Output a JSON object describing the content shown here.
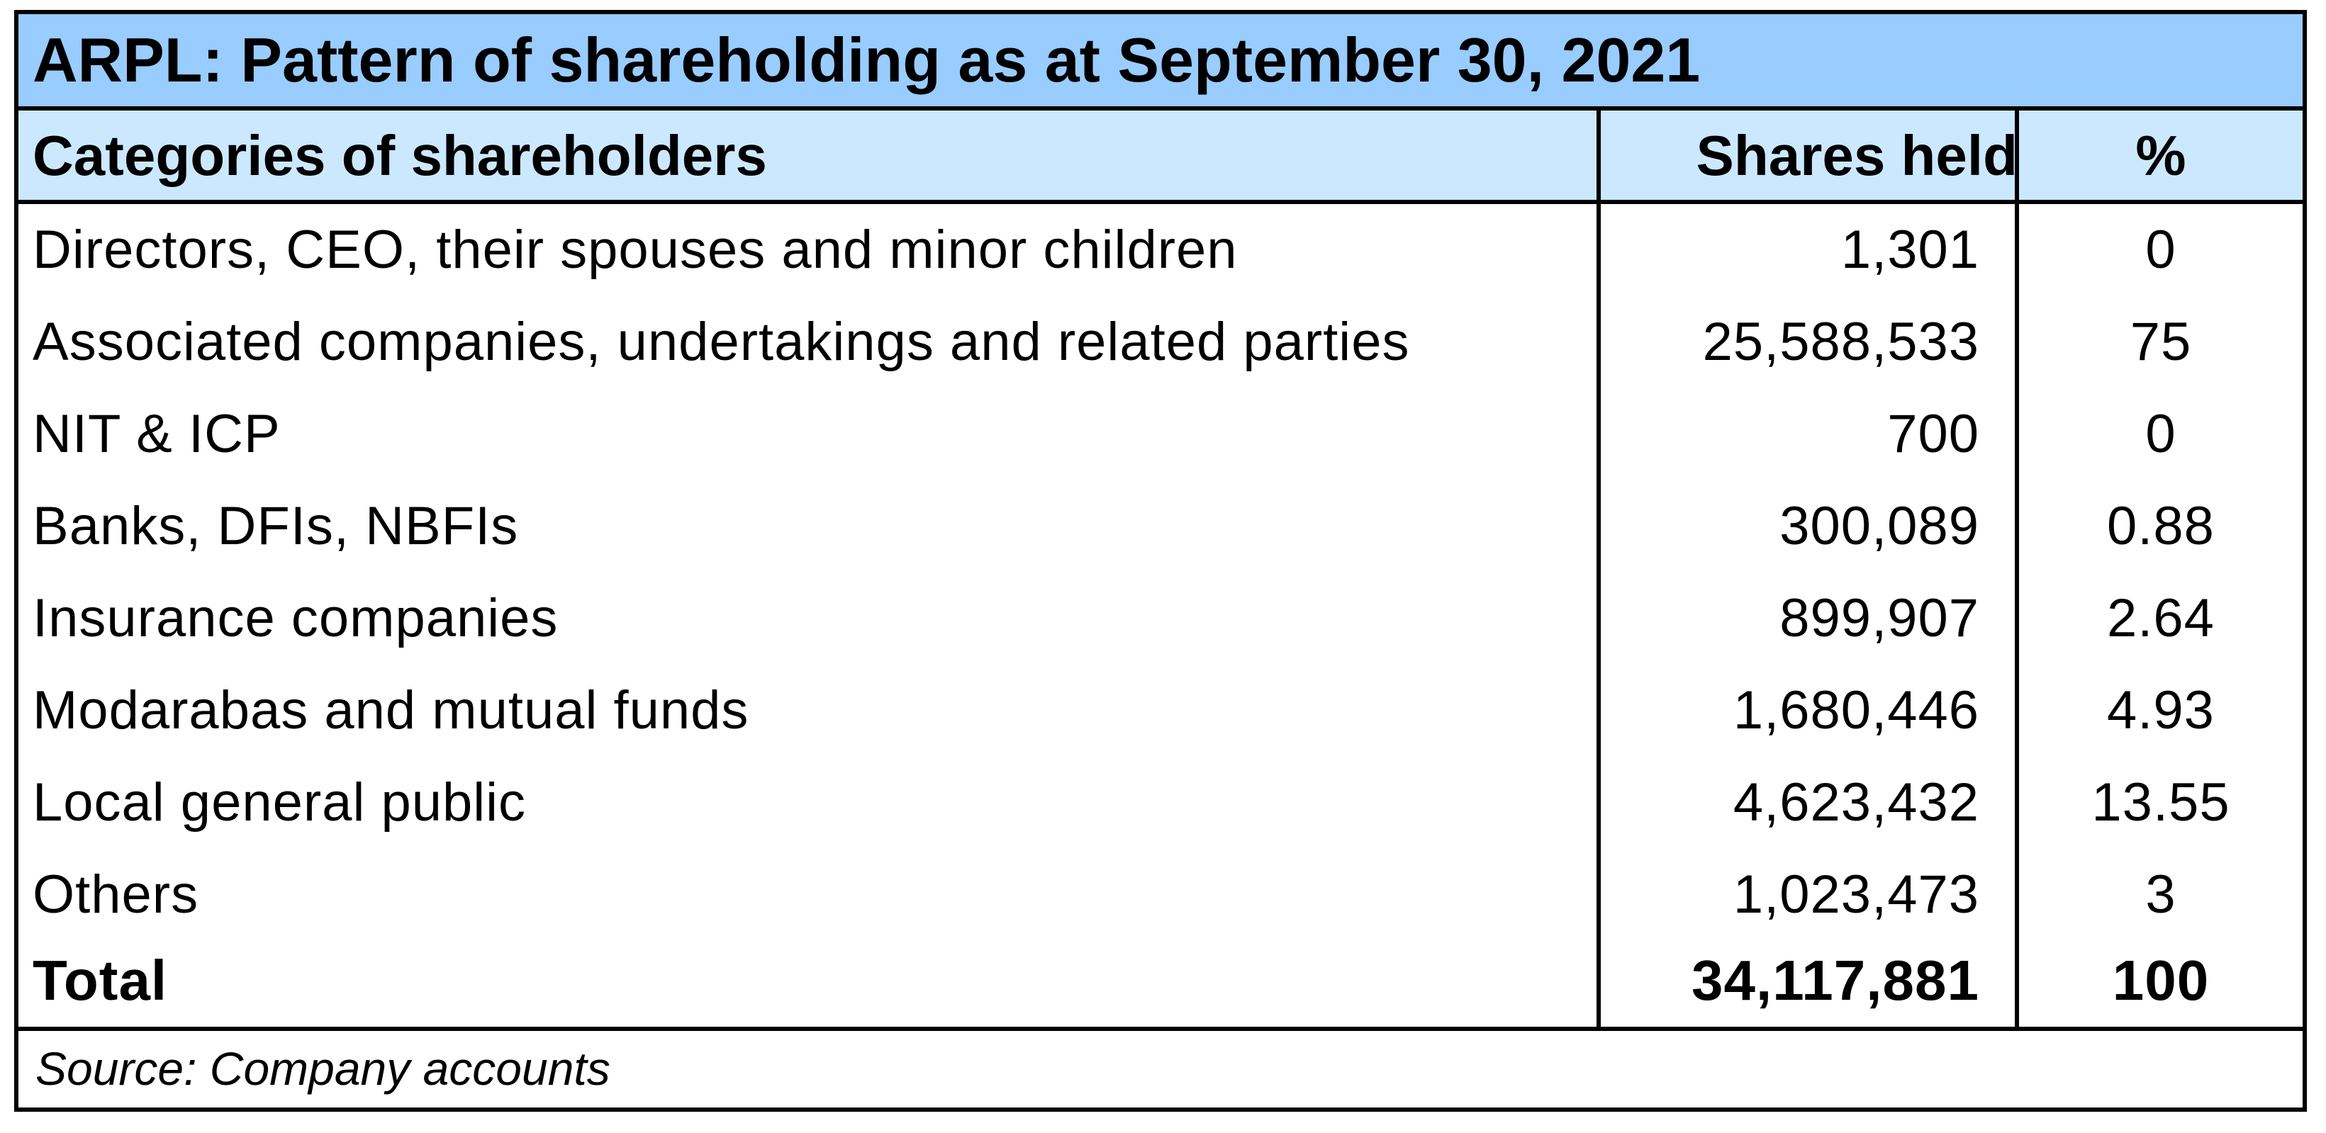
{
  "title": "ARPL: Pattern of shareholding as at September 30, 2021",
  "headers": {
    "category": "Categories of shareholders",
    "shares": "Shares held",
    "percent": "%"
  },
  "rows": [
    {
      "category": "Directors, CEO, their spouses and minor children",
      "shares": "1,301",
      "percent": "0"
    },
    {
      "category": "Associated companies, undertakings and related parties",
      "shares": "25,588,533",
      "percent": "75"
    },
    {
      "category": "NIT & ICP",
      "shares": "700",
      "percent": "0"
    },
    {
      "category": "Banks, DFIs, NBFIs",
      "shares": "300,089",
      "percent": "0.88"
    },
    {
      "category": "Insurance companies",
      "shares": "899,907",
      "percent": "2.64"
    },
    {
      "category": "Modarabas and mutual funds",
      "shares": "1,680,446",
      "percent": "4.93"
    },
    {
      "category": "Local general public",
      "shares": "4,623,432",
      "percent": "13.55"
    },
    {
      "category": "Others",
      "shares": "1,023,473",
      "percent": "3"
    }
  ],
  "total": {
    "category": "Total",
    "shares": "34,117,881",
    "percent": "100"
  },
  "source": "Source: Company accounts"
}
